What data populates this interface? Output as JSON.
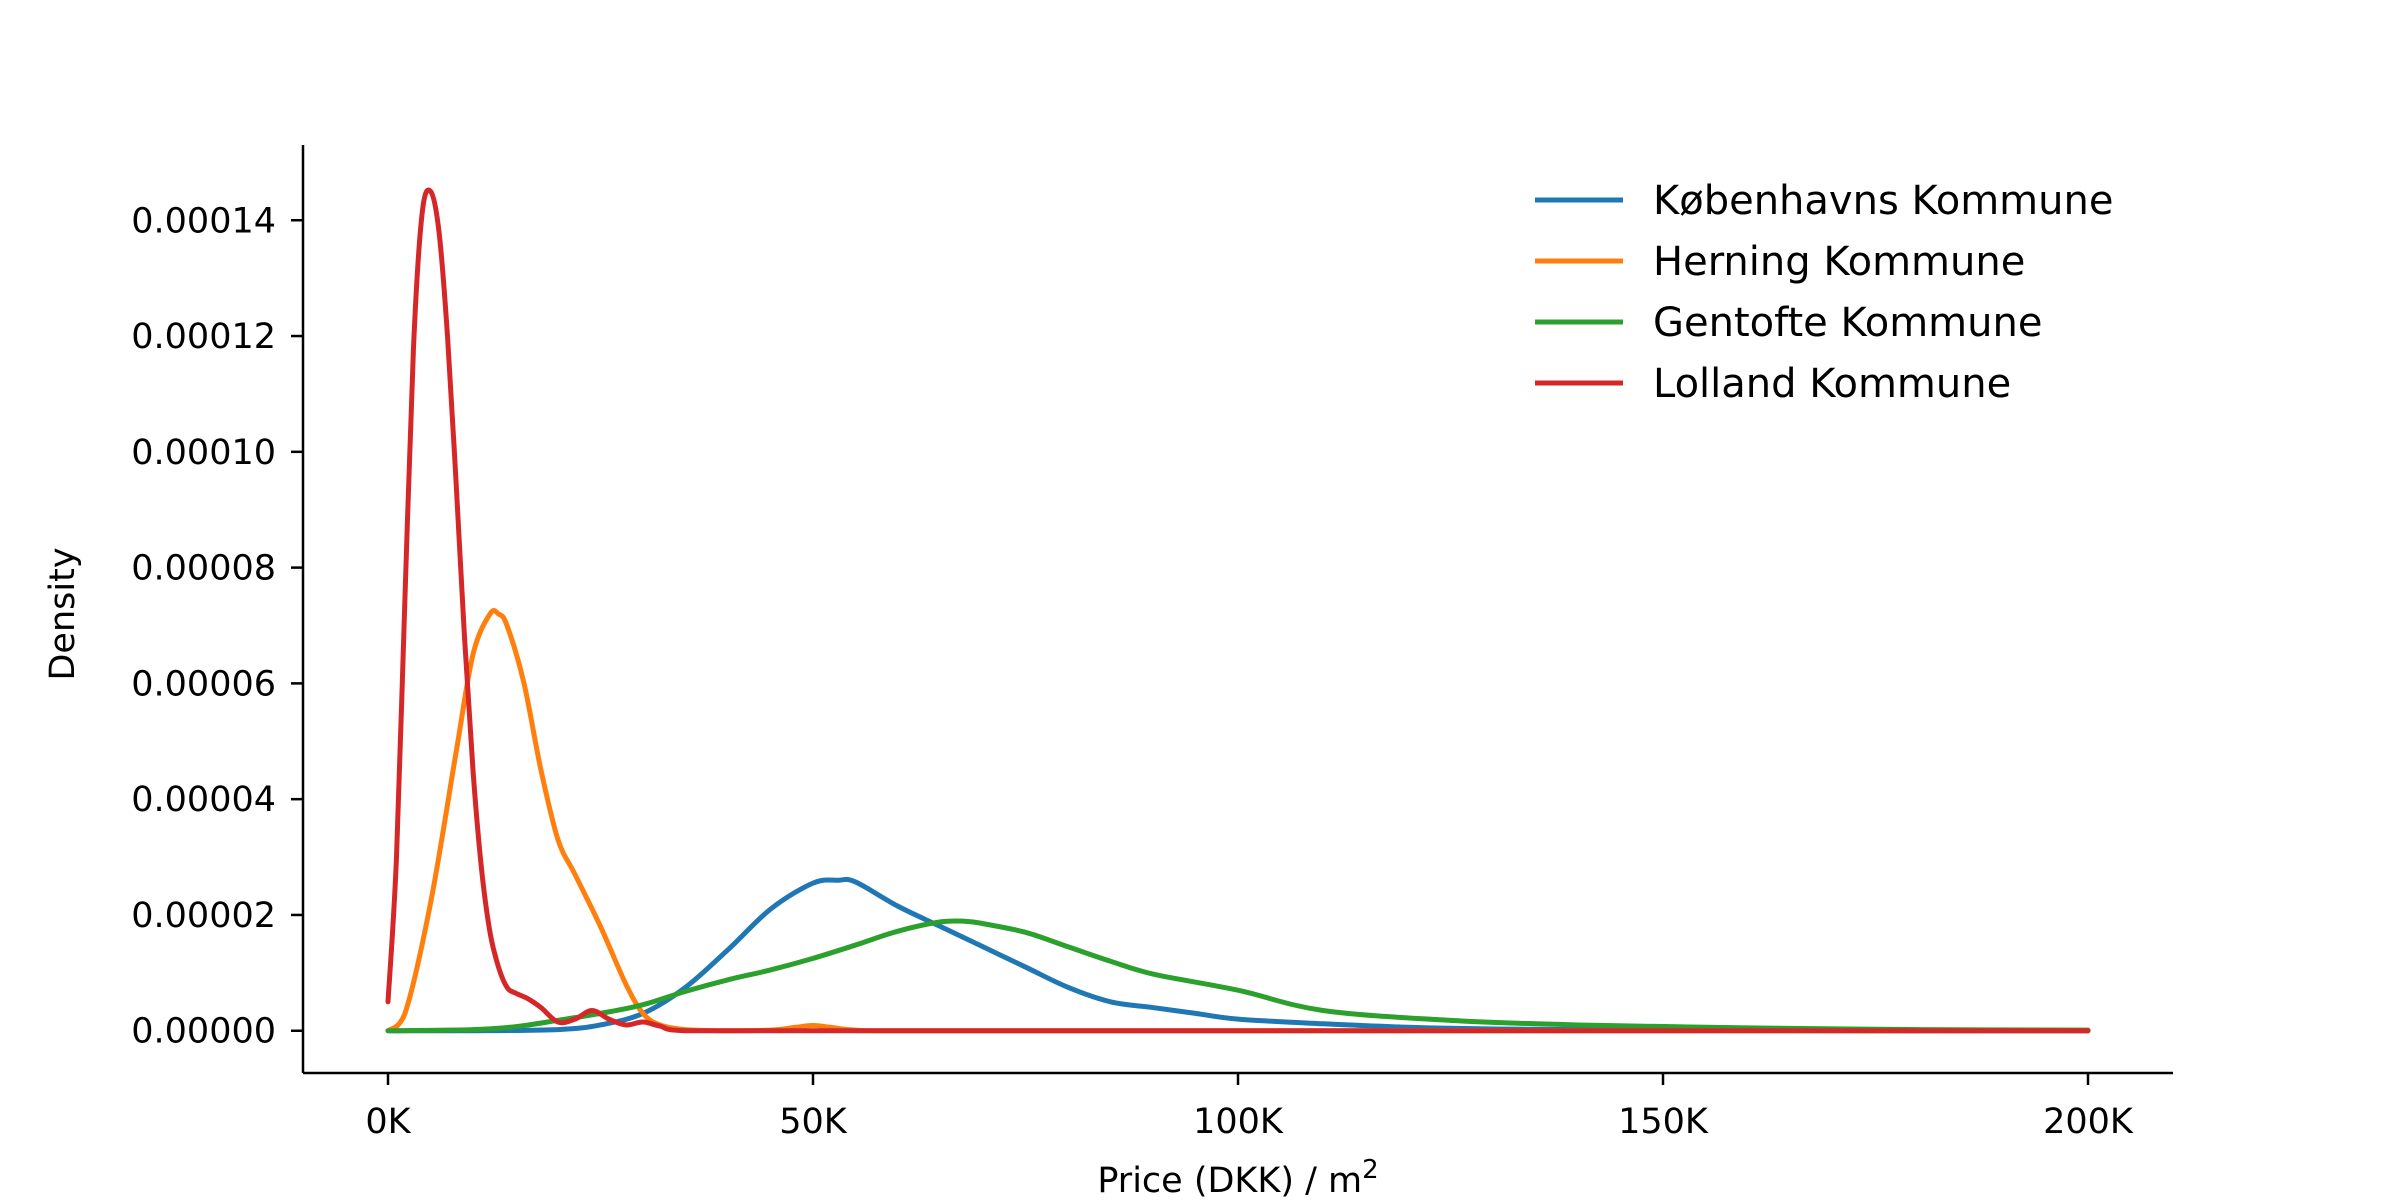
{
  "chart_data": {
    "type": "line",
    "title": "",
    "xlabel": "Price (DKK) / m",
    "xlabel_superscript": "2",
    "ylabel": "Density",
    "xlim": [
      -10000,
      210000
    ],
    "ylim": [
      -7.3e-06,
      0.000153
    ],
    "x_ticks": [
      0,
      50000,
      100000,
      150000,
      200000
    ],
    "x_tick_labels": [
      "0K",
      "50K",
      "100K",
      "150K",
      "200K"
    ],
    "y_ticks": [
      0,
      2e-05,
      4e-05,
      6e-05,
      8e-05,
      0.0001,
      0.00012,
      0.00014
    ],
    "y_tick_labels": [
      "0.00000",
      "0.00002",
      "0.00004",
      "0.00006",
      "0.00008",
      "0.00010",
      "0.00012",
      "0.00014"
    ],
    "grid": false,
    "legend_position": "top-right",
    "series": [
      {
        "name": "Københavns Kommune",
        "color": "#1f77b4",
        "x": [
          0,
          10000,
          20000,
          25000,
          30000,
          35000,
          40000,
          45000,
          50000,
          53000,
          55000,
          60000,
          65000,
          70000,
          75000,
          80000,
          85000,
          90000,
          95000,
          100000,
          110000,
          120000,
          130000,
          150000,
          175000,
          200000
        ],
        "y": [
          0,
          0,
          2e-07,
          1e-06,
          3e-06,
          7.5e-06,
          1.4e-05,
          2.1e-05,
          2.55e-05,
          2.6e-05,
          2.57e-05,
          2.15e-05,
          1.8e-05,
          1.45e-05,
          1.1e-05,
          7.5e-06,
          5e-06,
          4e-06,
          3e-06,
          2e-06,
          1.2e-06,
          6e-07,
          3e-07,
          1e-07,
          0,
          0
        ]
      },
      {
        "name": "Herning Kommune",
        "color": "#ff7f0e",
        "x": [
          0,
          2000,
          5000,
          8000,
          10000,
          12000,
          13000,
          14000,
          16000,
          18000,
          20000,
          22000,
          25000,
          28000,
          30000,
          32000,
          35000,
          40000,
          45000,
          48000,
          50000,
          52000,
          55000,
          60000,
          100000,
          200000
        ],
        "y": [
          0,
          3e-06,
          2.2e-05,
          4.8e-05,
          6.5e-05,
          7.2e-05,
          7.2e-05,
          7e-05,
          6e-05,
          4.5e-05,
          3.3e-05,
          2.7e-05,
          1.8e-05,
          8e-06,
          3e-06,
          1e-06,
          2e-07,
          0,
          1e-07,
          6e-07,
          9e-07,
          6e-07,
          1e-07,
          0,
          0,
          0
        ]
      },
      {
        "name": "Gentofte Kommune",
        "color": "#2ca02c",
        "x": [
          0,
          10000,
          15000,
          20000,
          25000,
          30000,
          35000,
          40000,
          45000,
          50000,
          55000,
          60000,
          65000,
          68000,
          70000,
          75000,
          80000,
          85000,
          90000,
          100000,
          110000,
          125000,
          140000,
          160000,
          180000,
          200000
        ],
        "y": [
          0,
          2e-07,
          7e-07,
          1.8e-06,
          3e-06,
          4.5e-06,
          6.8e-06,
          8.8e-06,
          1.05e-05,
          1.25e-05,
          1.48e-05,
          1.72e-05,
          1.88e-05,
          1.89e-05,
          1.85e-05,
          1.7e-05,
          1.45e-05,
          1.2e-05,
          9.8e-06,
          7e-06,
          3.5e-06,
          1.8e-06,
          1e-06,
          5e-07,
          2e-07,
          1e-07
        ]
      },
      {
        "name": "Lolland Kommune",
        "color": "#d62728",
        "x": [
          0,
          1000,
          2000,
          3000,
          4000,
          5000,
          6000,
          7000,
          8000,
          9000,
          10000,
          11000,
          12000,
          13000,
          14000,
          15000,
          16500,
          18000,
          20000,
          22000,
          24000,
          26000,
          28000,
          30000,
          32000,
          35000,
          50000,
          100000,
          200000
        ],
        "y": [
          5e-06,
          3e-05,
          7.5e-05,
          0.000118,
          0.000141,
          0.000145,
          0.000138,
          0.00012,
          9.5e-05,
          6.8e-05,
          4.5e-05,
          2.8e-05,
          1.7e-05,
          1.1e-05,
          7.5e-06,
          6.5e-06,
          5.5e-06,
          4e-06,
          1.5e-06,
          2e-06,
          3.5e-06,
          2e-06,
          1e-06,
          1.5e-06,
          8e-07,
          0,
          0,
          0,
          0
        ]
      }
    ]
  }
}
